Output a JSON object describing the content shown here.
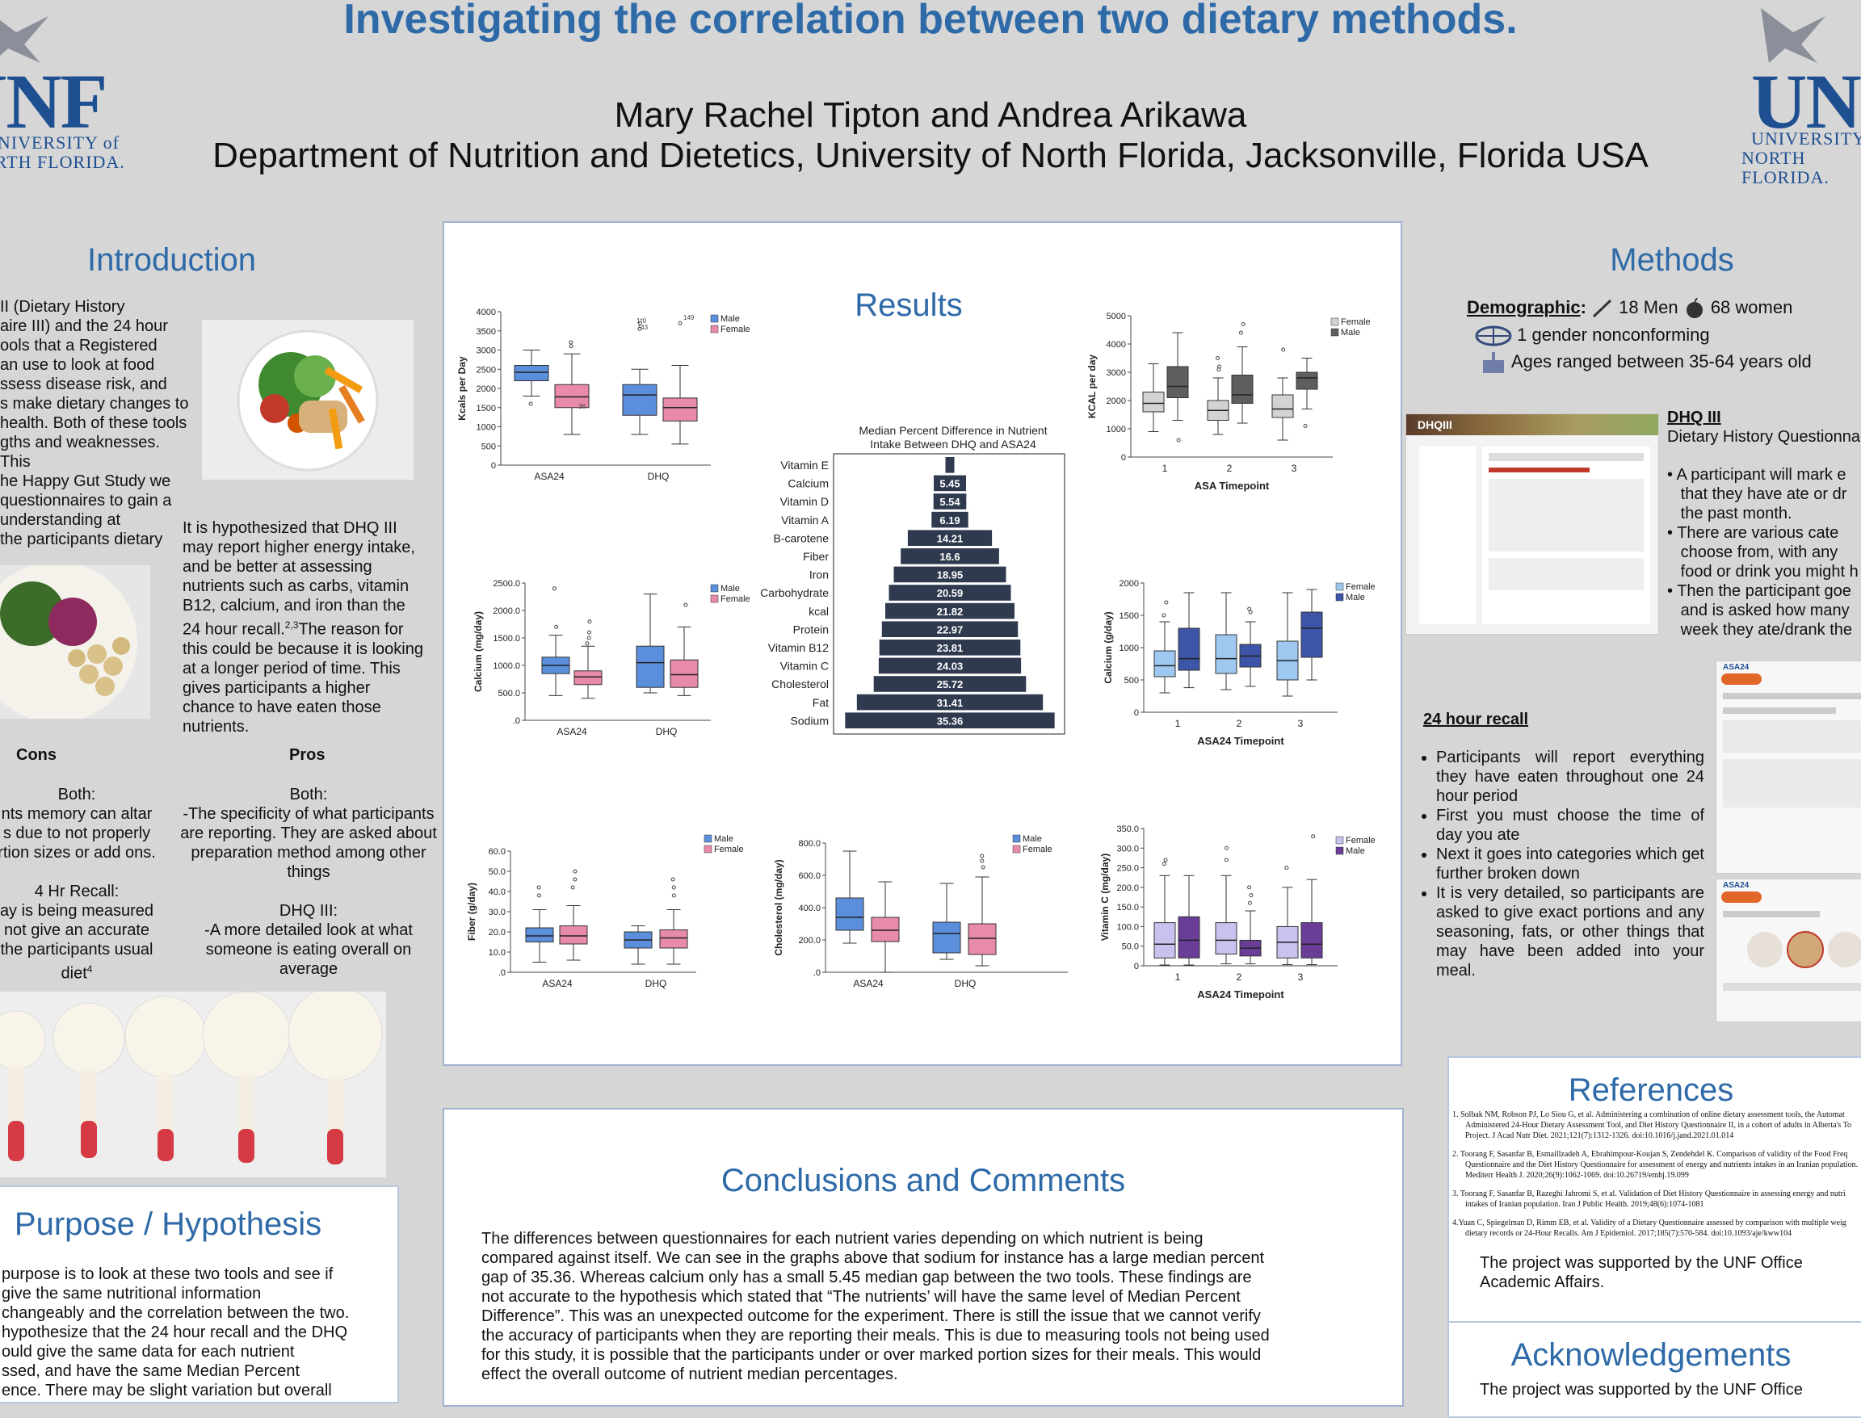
{
  "header": {
    "title": "Investigating the correlation between two dietary methods.",
    "authors": "Mary Rachel Tipton and Andrea Arikawa",
    "department": "Department of Nutrition and Dietetics, University of North Florida, Jacksonville, Florida USA",
    "logo_left": {
      "mark": "UNF",
      "line1": "UNIVERSITY of",
      "line2": "NORTH FLORIDA."
    },
    "logo_right": {
      "mark": "UNF",
      "line1": "UNIVERSITY of",
      "line2": "NORTH FLORIDA."
    }
  },
  "intro": {
    "heading": "Introduction",
    "para1": [
      "II (Dietary History",
      "aire III) and the 24 hour",
      "ools that a Registered",
      "an use to look at food",
      "ssess disease risk, and",
      "s make dietary changes to",
      "health. Both of these tools",
      "gths and weaknesses. This",
      "he Happy Gut Study we",
      "questionnaires to gain a",
      "understanding at",
      "the participants dietary"
    ],
    "hypothesis": [
      "It is hypothesized that DHQ III",
      "may report higher energy intake,",
      "and be better at assessing",
      "nutrients such as carbs, vitamin",
      "B12, calcium, and iron than the",
      "24 hour recall.",
      "The reason for",
      "this could be because it is looking",
      "at a longer period of time. This",
      "gives participants a higher",
      "chance to have eaten those",
      "nutrients."
    ],
    "hyp_sup": "2,3",
    "cons_heading": "Cons",
    "pros_heading": "Pros",
    "cons_lines": [
      "Both:",
      "nts memory can altar",
      "s due to not properly",
      "rtion sizes or add ons.",
      "",
      "4 Hr Recall:",
      "ay is being measured",
      "not give an accurate",
      "the participants usual",
      "diet"
    ],
    "cons_sup": "4",
    "pros_lines": [
      "Both:",
      "-The specificity of what participants",
      "are reporting. They are asked about",
      "preparation method among other",
      "things",
      "",
      "DHQ III:",
      "-A more detailed look at what",
      "someone is eating overall on",
      "average"
    ]
  },
  "purpose": {
    "heading": "Purpose / Hypothesis",
    "lines": [
      "purpose is to look at these two tools and see if",
      "give the same nutritional information",
      "changeably and the correlation between the two.",
      "hypothesize that the 24 hour recall and the DHQ",
      "ould give the same data for each nutrient",
      "ssed, and have the same Median Percent",
      "ence. There may be slight variation but overall"
    ]
  },
  "results": {
    "heading": "Results",
    "kcal_plot": {
      "ylabel": "Kcals per Day",
      "x": [
        "ASA24",
        "DHQ"
      ],
      "ticks": [
        "0",
        "500",
        "1000",
        "1500",
        "2000",
        "2500",
        "3000",
        "3500",
        "4000"
      ],
      "legend": [
        "Male",
        "Female"
      ],
      "labels": [
        "1*0",
        "*43",
        "149",
        "36"
      ]
    },
    "calcium_plot": {
      "ylabel": "Calcium (mg/day)",
      "x": [
        "ASA24",
        "DHQ"
      ],
      "ticks": [
        ".0",
        "500.0",
        "1000.0",
        "1500.0",
        "2000.0",
        "2500.0"
      ],
      "legend": [
        "Male",
        "Female"
      ]
    },
    "fiber_plot": {
      "ylabel": "Fiber (g/day)",
      "x": [
        "ASA24",
        "DHQ"
      ],
      "ticks": [
        ".0",
        "10.0",
        "20.0",
        "30.0",
        "40.0",
        "50.0",
        "60.0"
      ],
      "legend": [
        "Male",
        "Female"
      ]
    },
    "chol_plot": {
      "ylabel": "Cholesterol (mg/day)",
      "x": [
        "ASA24",
        "DHQ"
      ],
      "ticks": [
        ".0",
        "200.0",
        "400.0",
        "600.0",
        "800.0"
      ],
      "legend": [
        "Male",
        "Female"
      ]
    },
    "asa_kcal_plot": {
      "ylabel": "KCAL per day",
      "xlabel": "ASA Timepoint",
      "x": [
        "1",
        "2",
        "3"
      ],
      "ticks": [
        "0",
        "1000",
        "2000",
        "3000",
        "4000",
        "5000"
      ],
      "legend": [
        "Female",
        "Male"
      ]
    },
    "asa_calcium_plot": {
      "ylabel": "Calcium (g/day)",
      "xlabel": "ASA24 Timepoint",
      "x": [
        "1",
        "2",
        "3"
      ],
      "ticks": [
        "0",
        "500",
        "1000",
        "1500",
        "2000"
      ],
      "legend": [
        "Female",
        "Male"
      ]
    },
    "asa_vitc_plot": {
      "ylabel": "Vitamin C (mg/day)",
      "xlabel": "ASA24 Timepoint",
      "x": [
        "1",
        "2",
        "3"
      ],
      "ticks": [
        "0",
        "50.0",
        "100.0",
        "150.0",
        "200.0",
        "250.0",
        "300.0",
        "350.0"
      ],
      "legend": [
        "Female",
        "Male"
      ]
    },
    "colors": {
      "male_blue": "#5b8fdc",
      "female_pink": "#e88aaa",
      "grey_light": "#d3d3d3",
      "grey_dark": "#5e5e5e",
      "lightblue": "#9ec8f0",
      "darkblue": "#3d55a8",
      "lavender": "#c8c2ee",
      "purple": "#6a3d99",
      "bar_navy": "#2f3a4f"
    }
  },
  "chart_data": {
    "type": "bar",
    "orientation": "horizontal-centered",
    "title": "Median Percent Difference in Nutrient Intake Between DHQ and ASA24",
    "categories": [
      "Vitamin E",
      "Calcium",
      "Vitamin D",
      "Vitamin A",
      "B-carotene",
      "Fiber",
      "Iron",
      "Carbohydrate",
      "kcal",
      "Protein",
      "Vitamin B12",
      "Vitamin C",
      "Cholesterol",
      "Fat",
      "Sodium"
    ],
    "values": [
      1.5,
      5.45,
      5.54,
      6.19,
      14.21,
      16.6,
      18.95,
      20.59,
      21.82,
      22.97,
      23.81,
      24.03,
      25.72,
      31.41,
      35.36
    ],
    "value_labels": [
      "",
      "5.45",
      "5.54",
      "6.19",
      "14.21",
      "16.6",
      "18.95",
      "20.59",
      "21.82",
      "22.97",
      "23.81",
      "24.03",
      "25.72",
      "31.41",
      "35.36"
    ],
    "xlim": [
      0,
      36
    ]
  },
  "methods": {
    "heading": "Methods",
    "demo_label": "Demographic",
    "demo_men": "18 Men",
    "demo_women": "68 women",
    "demo_nonconf": "1 gender nonconforming",
    "demo_ages": "Ages ranged between 35-64 years old",
    "dhq_title": "DHQ III",
    "dhq_sub": "Dietary History Questionna",
    "dhq_bullets": [
      [
        "A participant will mark e",
        "that they have ate or dr",
        "the past month."
      ],
      [
        "There are various cate",
        "choose from, with any",
        "food or drink you might h"
      ],
      [
        "Then the participant goe",
        "and is asked how many",
        "week they ate/drank the"
      ]
    ],
    "recall_title": "24 hour recall",
    "recall_bullets": [
      "Participants will report everything they have eaten throughout one 24 hour period",
      "First you must choose the time of day you ate",
      "Next it goes into categories which get further broken down",
      "It is very detailed, so participants are asked to give exact portions and any seasoning, fats, or other things that may have been added into your meal."
    ],
    "dhq_shot_brand": "DHQIII",
    "asa_shot_brand": "ASA24",
    "asa_shot_brand2": "ASA24"
  },
  "conclusions": {
    "heading": "Conclusions and Comments",
    "lines": [
      "The differences between questionnaires for each nutrient varies depending on which nutrient is being",
      "compared against itself. We can see in the graphs above that sodium for instance has a large median percent",
      "gap of 35.36. Whereas calcium only has a small 5.45 median gap between the two tools. These findings are",
      "not accurate to the hypothesis which stated that “The nutrients’ will have the same level of Median Percent",
      "Difference”.  This was an unexpected outcome for the experiment.  There is still the issue that we cannot verify",
      "the accuracy of participants when they are reporting their meals. This is due to measuring tools not being used",
      "for this study, it is possible that the participants under or over marked portion sizes for their meals. This would",
      "effect the overall outcome of nutrient median percentages."
    ]
  },
  "references": {
    "heading": "References",
    "items": [
      [
        "1. Solbak NM, Robson PJ, Lo Siou G, et al. Administering a combination of online dietary assessment tools, the Automat",
        "Administered 24-Hour Dietary Assessment Tool, and Diet History Questionnaire II, in a cohort of adults in Alberta's To",
        "Project. J Acad Nutr Diet. 2021;121(7):1312-1326. doi:10.1016/j.jand.2021.01.014"
      ],
      [
        "2. Toorang F, Sasanfar B, Esmaillzadeh A, Ebrahimpour-Koujan S, Zendehdel K. Comparison of validity of the Food Freq",
        "Questionnaire and the Diet History Questionnaire for assessment of energy and nutrients intakes in an Iranian population.",
        "Mediterr Health J. 2020;26(9):1062-1069. doi:10.26719/emhj.19.099"
      ],
      [
        "3. Toorang F, Sasanfar B, Razeghi Jahromi S, et al. Validation of Diet History Questionnaire in assessing energy and nutri",
        "intakes of Iranian population. Iran J Public Health. 2019;48(6):1074-1081"
      ],
      [
        "4.Yuan C, Spiegelman D, Rimm EB, et al. Validity of a Dietary Questionnaire assessed by comparison with multiple weig",
        "dietary records or 24-Hour Recalls. Am J Epidemiol. 2017;185(7):570-584. doi:10.1093/aje/kww104"
      ]
    ],
    "support_lines": [
      "The project was supported by the UNF Office",
      "Academic Affairs."
    ]
  },
  "acknowledgements": {
    "heading": "Acknowledgements",
    "line": "The project was supported by the UNF Office"
  }
}
